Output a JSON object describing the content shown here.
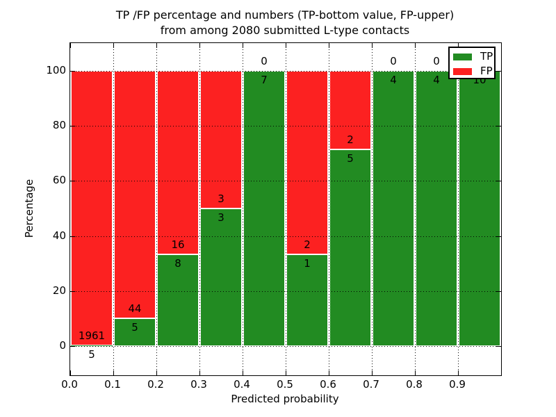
{
  "chart_data": {
    "type": "bar",
    "stacked": true,
    "title_lines": [
      "TP /FP percentage and numbers (TP-bottom value, FP-upper)",
      "from among 2080 submitted L-type contacts"
    ],
    "xlabel": "Predicted probability",
    "ylabel": "Percentage",
    "x_ticks": [
      0.0,
      0.1,
      0.2,
      0.3,
      0.4,
      0.5,
      0.6,
      0.7,
      0.8,
      0.9
    ],
    "x_tick_labels": [
      "0.0",
      "0.1",
      "0.2",
      "0.3",
      "0.4",
      "0.5",
      "0.6",
      "0.7",
      "0.8",
      "0.9"
    ],
    "y_ticks": [
      0,
      20,
      40,
      60,
      80,
      100
    ],
    "y_tick_labels": [
      "0",
      "20",
      "40",
      "60",
      "80",
      "100"
    ],
    "xlim": [
      0.0,
      1.0
    ],
    "ylim": [
      -10.5,
      110
    ],
    "grid": true,
    "grid_style": "dotted",
    "bin_width": 0.1,
    "bin_starts": [
      0.0,
      0.1,
      0.2,
      0.3,
      0.4,
      0.5,
      0.6,
      0.7,
      0.8,
      0.9
    ],
    "series": [
      {
        "name": "TP",
        "color": "#228b22",
        "counts": [
          5,
          5,
          8,
          3,
          7,
          1,
          5,
          4,
          4,
          10
        ]
      },
      {
        "name": "FP",
        "color": "#fc2121",
        "counts": [
          1961,
          44,
          16,
          3,
          0,
          2,
          2,
          0,
          0,
          0
        ]
      }
    ],
    "tp_percentages": [
      0.25,
      10.2,
      33.33,
      50.0,
      100.0,
      33.33,
      71.43,
      100.0,
      100.0,
      100.0
    ],
    "total_contacts": 2080,
    "legend": {
      "position": "upper right",
      "entries": [
        {
          "label": "TP",
          "color": "#228b22"
        },
        {
          "label": "FP",
          "color": "#fc2121"
        }
      ]
    }
  }
}
